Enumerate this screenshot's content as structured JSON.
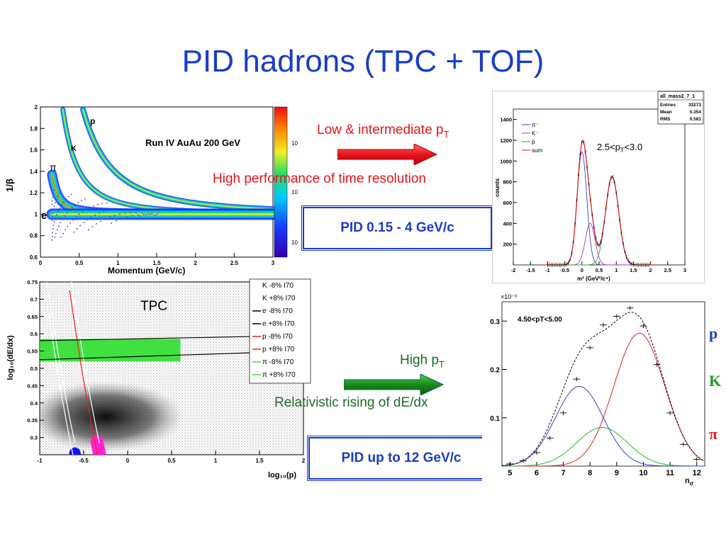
{
  "slide": {
    "title": "PID hadrons (TPC + TOF)",
    "low_intermediate": "Low & intermediate p",
    "low_intermediate_sub": "T",
    "high_perf": "High performance of time resolution",
    "pid_box1": "PID 0.15 - 4 GeV/c",
    "high_pt": "High p",
    "high_pt_sub": "T",
    "relativistic": "Relativistic rising of dE/dx",
    "pid_box2": "PID up to 12 GeV/c",
    "colors": {
      "title": "#1a3cc8",
      "red": "#e8141b",
      "green": "#1e6b28",
      "arrow_red": "#e8141b",
      "arrow_green": "#1a8a1a"
    }
  },
  "chart_data": [
    {
      "type": "heatmap",
      "title": "Run IV AuAu 200 GeV",
      "xlabel": "Momentum (GeV/c)",
      "ylabel": "1/β",
      "xlim": [
        0,
        3
      ],
      "ylim": [
        0.6,
        2.0
      ],
      "x_ticks": [
        "0",
        "0.5",
        "1",
        "1.5",
        "2",
        "2.5",
        "3"
      ],
      "y_ticks": [
        "0.6",
        "0.8",
        "1",
        "1.2",
        "1.4",
        "1.6",
        "1.8",
        "2"
      ],
      "colorbar_ticks": [
        "10³",
        "10²",
        "10"
      ],
      "annotations": [
        "p",
        "K",
        "π",
        "e"
      ],
      "bands": [
        {
          "name": "p",
          "mass": 0.938
        },
        {
          "name": "K",
          "mass": 0.494
        },
        {
          "name": "π",
          "mass": 0.14
        },
        {
          "name": "e",
          "mass": 0.0005
        }
      ]
    },
    {
      "type": "line",
      "stats": {
        "name": "all_mass2_7_1",
        "rows": [
          [
            "Entries",
            "33273"
          ],
          [
            "Mean",
            "0.354"
          ],
          [
            "RMS",
            "0.581"
          ]
        ]
      },
      "annotation": "2.5<pT<3.0",
      "xlabel": "m² (GeV²/c⁴)",
      "ylabel": "counts",
      "xlim": [
        -2,
        3
      ],
      "ylim": [
        0,
        1500
      ],
      "x_ticks": [
        "-2",
        "-1.5",
        "-1",
        "-0.5",
        "0",
        "0.5",
        "1",
        "1.5",
        "2",
        "2.5",
        "3"
      ],
      "y_ticks": [
        "200",
        "400",
        "600",
        "800",
        "1000",
        "1200",
        "1400"
      ],
      "legend": [
        "π⁻",
        "K⁻",
        "p̄",
        "sum"
      ],
      "series": [
        {
          "name": "π⁻",
          "color": "#3344cc",
          "mean": 0.0,
          "sigma": 0.14,
          "amp": 1090
        },
        {
          "name": "K⁻",
          "color": "#aa33cc",
          "mean": 0.24,
          "sigma": 0.14,
          "amp": 400
        },
        {
          "name": "p̄",
          "color": "#22aa22",
          "mean": 0.88,
          "sigma": 0.19,
          "amp": 850
        },
        {
          "name": "sum",
          "color": "#dd2222",
          "mean": null,
          "sigma": null,
          "amp": null
        }
      ]
    },
    {
      "type": "scatter",
      "annotation": "TPC",
      "xlabel": "log₁₀(p)",
      "ylabel": "log₁₀(dE/dx)",
      "xlim": [
        -1,
        2
      ],
      "ylim": [
        0.25,
        0.75
      ],
      "x_ticks": [
        "-1",
        "-0.5",
        "0",
        "0.5",
        "1",
        "1.5",
        "2"
      ],
      "y_ticks": [
        "0.3",
        "0.35",
        "0.4",
        "0.45",
        "0.5",
        "0.55",
        "0.6",
        "0.65",
        "0.7",
        "0.75"
      ],
      "legend": [
        "K -8%  I70",
        "K +8%  I70",
        "e -8%  I70",
        "e +8%  I70",
        "p -8%  I70",
        "p +8%  I70",
        "π -8%  I70",
        "π +8%  I70"
      ]
    },
    {
      "type": "line",
      "annotation": "4.50<pT<5.00",
      "exponent_label": "×10⁻³",
      "xlabel": "nσ",
      "xlim": [
        4.7,
        12.3
      ],
      "ylim": [
        0,
        0.34
      ],
      "x_ticks": [
        "5",
        "6",
        "7",
        "8",
        "9",
        "10",
        "11",
        "12"
      ],
      "y_ticks": [
        "0.1",
        "0.2",
        "0.3"
      ],
      "side_labels": [
        "p",
        "K",
        "π"
      ],
      "series": [
        {
          "name": "p",
          "color": "#dd2222",
          "mean": 9.85,
          "sigma": 0.95,
          "amp": 0.275
        },
        {
          "name": "K",
          "color": "#22bb22",
          "mean": 8.45,
          "sigma": 0.95,
          "amp": 0.08
        },
        {
          "name": "π",
          "color": "#3344cc",
          "mean": 7.6,
          "sigma": 0.9,
          "amp": 0.165
        }
      ],
      "data_points": [
        {
          "x": 5.0,
          "y": 0.0045
        },
        {
          "x": 5.5,
          "y": 0.011
        },
        {
          "x": 6.0,
          "y": 0.028
        },
        {
          "x": 6.5,
          "y": 0.058
        },
        {
          "x": 7.0,
          "y": 0.11
        },
        {
          "x": 7.5,
          "y": 0.18
        },
        {
          "x": 8.0,
          "y": 0.245
        },
        {
          "x": 8.5,
          "y": 0.292
        },
        {
          "x": 9.0,
          "y": 0.31
        },
        {
          "x": 9.5,
          "y": 0.327
        },
        {
          "x": 10.0,
          "y": 0.29
        },
        {
          "x": 10.5,
          "y": 0.21
        },
        {
          "x": 11.0,
          "y": 0.11
        },
        {
          "x": 11.5,
          "y": 0.045
        },
        {
          "x": 12.0,
          "y": 0.014
        }
      ]
    }
  ]
}
